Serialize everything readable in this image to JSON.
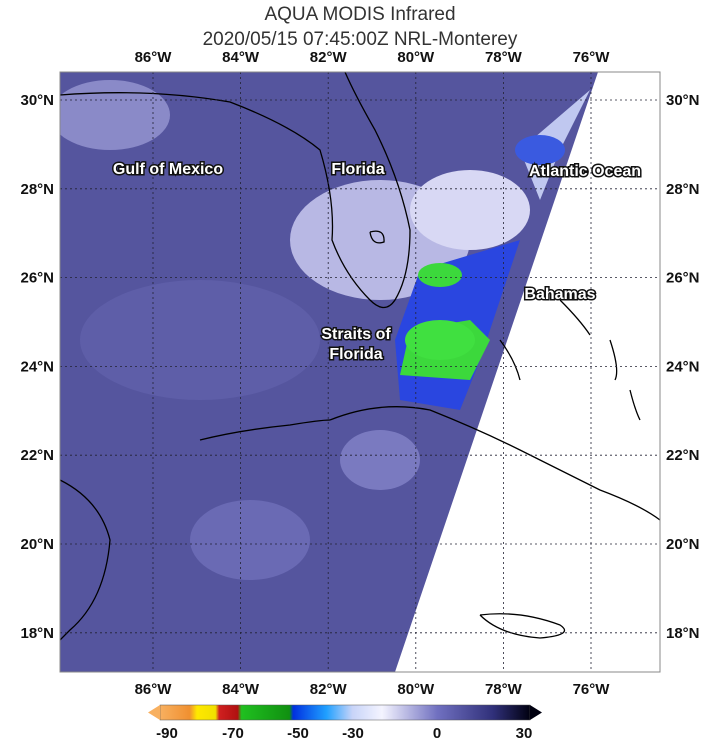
{
  "header": {
    "title": "AQUA MODIS Infrared",
    "subtitle": "2020/05/15 07:45:00Z NRL-Monterey"
  },
  "map": {
    "longitude_labels": [
      "86°W",
      "84°W",
      "82°W",
      "80°W",
      "78°W",
      "76°W"
    ],
    "latitude_labels": [
      "30°N",
      "28°N",
      "26°N",
      "24°N",
      "22°N",
      "20°N",
      "18°N"
    ],
    "places": [
      "Gulf of Mexico",
      "Florida",
      "Atlantic Ocean",
      "Bahamas"
    ],
    "straits_of_florida": [
      "Straits of",
      "Florida"
    ]
  },
  "colorbar": {
    "labels": [
      "-90",
      "-70",
      "-50",
      "-30",
      "0",
      "30"
    ]
  }
}
